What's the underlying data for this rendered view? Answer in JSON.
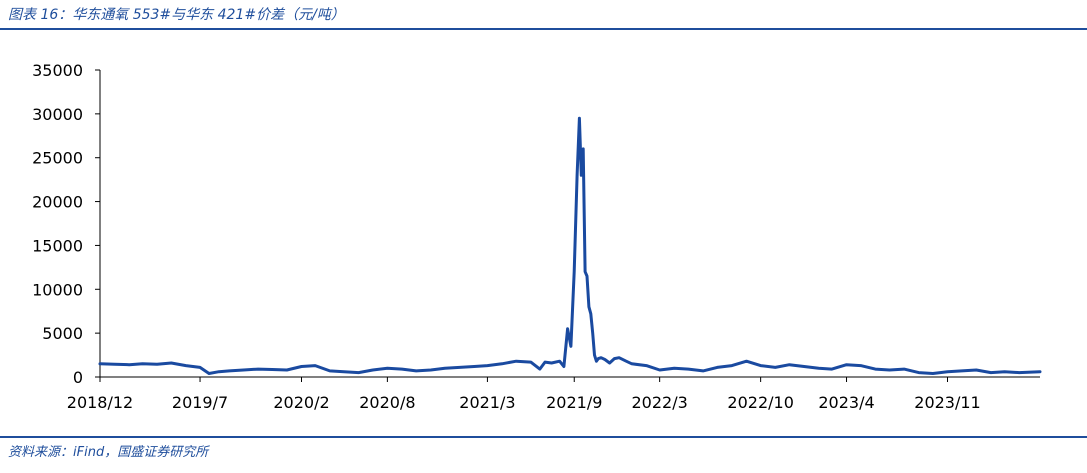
{
  "figure": {
    "title": "图表 16：华东通氧 553#与华东 421#价差（元/吨）",
    "source": "资料来源：iFind，国盛证券研究所"
  },
  "colors": {
    "accent": "#1f4e9c",
    "line": "#1a4aa0"
  },
  "chart_data": {
    "type": "line",
    "title": "",
    "xlabel": "",
    "ylabel": "",
    "ylim": [
      0,
      35000
    ],
    "y_ticks": [
      0,
      5000,
      10000,
      15000,
      20000,
      25000,
      30000,
      35000
    ],
    "x_range": [
      "2018-12-01",
      "2024-05-15"
    ],
    "x_ticks": [
      "2018/12",
      "2019/7",
      "2020/2",
      "2020/8",
      "2021/3",
      "2021/9",
      "2022/3",
      "2022/10",
      "2023/4",
      "2023/11"
    ],
    "grid": false,
    "legend": "none",
    "series": [
      {
        "x": [
          "2018-12-01",
          "2019-01-01",
          "2019-02-01",
          "2019-03-01",
          "2019-04-01",
          "2019-05-01",
          "2019-06-01",
          "2019-07-01",
          "2019-07-20",
          "2019-08-10",
          "2019-09-01",
          "2019-10-01",
          "2019-11-01",
          "2019-12-01",
          "2020-01-01",
          "2020-02-01",
          "2020-03-01",
          "2020-04-01",
          "2020-05-01",
          "2020-06-01",
          "2020-07-01",
          "2020-08-01",
          "2020-09-01",
          "2020-10-01",
          "2020-11-01",
          "2020-12-01",
          "2021-01-01",
          "2021-02-01",
          "2021-03-01",
          "2021-04-01",
          "2021-05-01",
          "2021-06-01",
          "2021-06-20",
          "2021-07-01",
          "2021-07-15",
          "2021-08-01",
          "2021-08-10",
          "2021-08-18",
          "2021-08-25",
          "2021-09-01",
          "2021-09-07",
          "2021-09-12",
          "2021-09-16",
          "2021-09-20",
          "2021-09-24",
          "2021-09-28",
          "2021-10-02",
          "2021-10-06",
          "2021-10-10",
          "2021-10-14",
          "2021-10-18",
          "2021-10-22",
          "2021-10-28",
          "2021-11-05",
          "2021-11-15",
          "2021-11-25",
          "2021-12-05",
          "2021-12-20",
          "2022-01-01",
          "2022-02-01",
          "2022-03-01",
          "2022-04-01",
          "2022-05-01",
          "2022-06-01",
          "2022-07-01",
          "2022-08-01",
          "2022-09-01",
          "2022-10-01",
          "2022-11-01",
          "2022-12-01",
          "2023-01-01",
          "2023-02-01",
          "2023-03-01",
          "2023-04-01",
          "2023-05-01",
          "2023-06-01",
          "2023-07-01",
          "2023-08-01",
          "2023-09-01",
          "2023-10-01",
          "2023-11-01",
          "2023-12-01",
          "2024-01-01",
          "2024-02-01",
          "2024-03-01",
          "2024-04-01",
          "2024-05-15"
        ],
        "values": [
          1500,
          1450,
          1400,
          1500,
          1450,
          1600,
          1300,
          1100,
          400,
          600,
          700,
          800,
          900,
          850,
          800,
          1200,
          1300,
          700,
          600,
          500,
          800,
          1000,
          900,
          700,
          800,
          1000,
          1100,
          1200,
          1300,
          1500,
          1800,
          1700,
          900,
          1700,
          1600,
          1800,
          1200,
          5500,
          3500,
          12000,
          23000,
          29500,
          23000,
          26000,
          12000,
          11500,
          8000,
          7200,
          5000,
          2500,
          1800,
          2100,
          2200,
          2000,
          1600,
          2100,
          2200,
          1800,
          1500,
          1300,
          800,
          1000,
          900,
          700,
          1100,
          1300,
          1800,
          1300,
          1100,
          1400,
          1200,
          1000,
          900,
          1400,
          1300,
          900,
          800,
          900,
          500,
          400,
          600,
          700,
          800,
          500,
          600,
          500,
          600
        ]
      }
    ]
  }
}
